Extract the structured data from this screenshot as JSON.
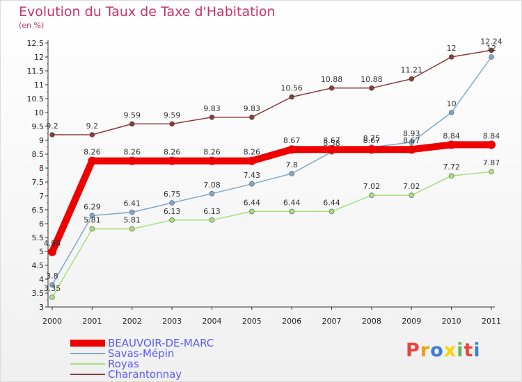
{
  "title": "Evolution du Taux de Taxe d'Habitation",
  "subtitle": "(en %)",
  "logo": {
    "text": "Proxiti",
    "colors": [
      "#e8453c",
      "#f39c12",
      "#3b7dd8",
      "#ffd200",
      "#5cb85c",
      "#e8453c",
      "#3b7dd8"
    ]
  },
  "chart_data": {
    "type": "line",
    "x": [
      "2000",
      "2001",
      "2002",
      "2003",
      "2004",
      "2005",
      "2006",
      "2007",
      "2008",
      "2009",
      "2010",
      "2011"
    ],
    "ylim": [
      3,
      12.5
    ],
    "yticks": [
      "3",
      "3.5",
      "4",
      "4.5",
      "5",
      "5.5",
      "6",
      "6.5",
      "7",
      "7.5",
      "8",
      "8.5",
      "9",
      "9.5",
      "10",
      "10.5",
      "11",
      "11.5",
      "12",
      "12.5"
    ],
    "grid": false,
    "legend_position": "bottom-left",
    "series": [
      {
        "name": "BEAUVOIR-DE-MARC",
        "color": "#ee0000",
        "values": [
          4.98,
          8.26,
          8.26,
          8.26,
          8.26,
          8.26,
          8.67,
          8.67,
          8.67,
          8.67,
          8.84,
          8.84
        ],
        "labels": [
          "4.98",
          "8.26",
          "8.26",
          "8.26",
          "8.26",
          "8.26",
          "8.67",
          "8.67",
          "8.67",
          "8.67",
          "8.84",
          "8.84"
        ]
      },
      {
        "name": "Savas-Mépin",
        "color": "#7ea7cc",
        "values": [
          3.8,
          6.29,
          6.41,
          6.75,
          7.08,
          7.43,
          7.8,
          8.58,
          8.75,
          8.93,
          10,
          12
        ],
        "labels": [
          "3.8",
          "6.29",
          "6.41",
          "6.75",
          "7.08",
          "7.43",
          "7.8",
          "8.58",
          "8.75",
          "8.93",
          "10",
          "12"
        ]
      },
      {
        "name": "Royas",
        "color": "#a5df7e",
        "values": [
          3.35,
          5.81,
          5.81,
          6.13,
          6.13,
          6.44,
          6.44,
          6.44,
          7.02,
          7.02,
          7.72,
          7.87
        ],
        "labels": [
          "3.35",
          "5.81",
          "5.81",
          "6.13",
          "6.13",
          "6.44",
          "6.44",
          "6.44",
          "7.02",
          "7.02",
          "7.72",
          "7.87"
        ]
      },
      {
        "name": "Charantonnay",
        "color": "#8b3a3a",
        "values": [
          9.2,
          9.2,
          9.59,
          9.59,
          9.83,
          9.83,
          10.56,
          10.88,
          10.88,
          11.21,
          12,
          12.24
        ],
        "labels": [
          "9.2",
          "9.2",
          "9.59",
          "9.59",
          "9.83",
          "9.83",
          "10.56",
          "10.88",
          "10.88",
          "11.21",
          "12",
          "12.24"
        ]
      }
    ]
  }
}
